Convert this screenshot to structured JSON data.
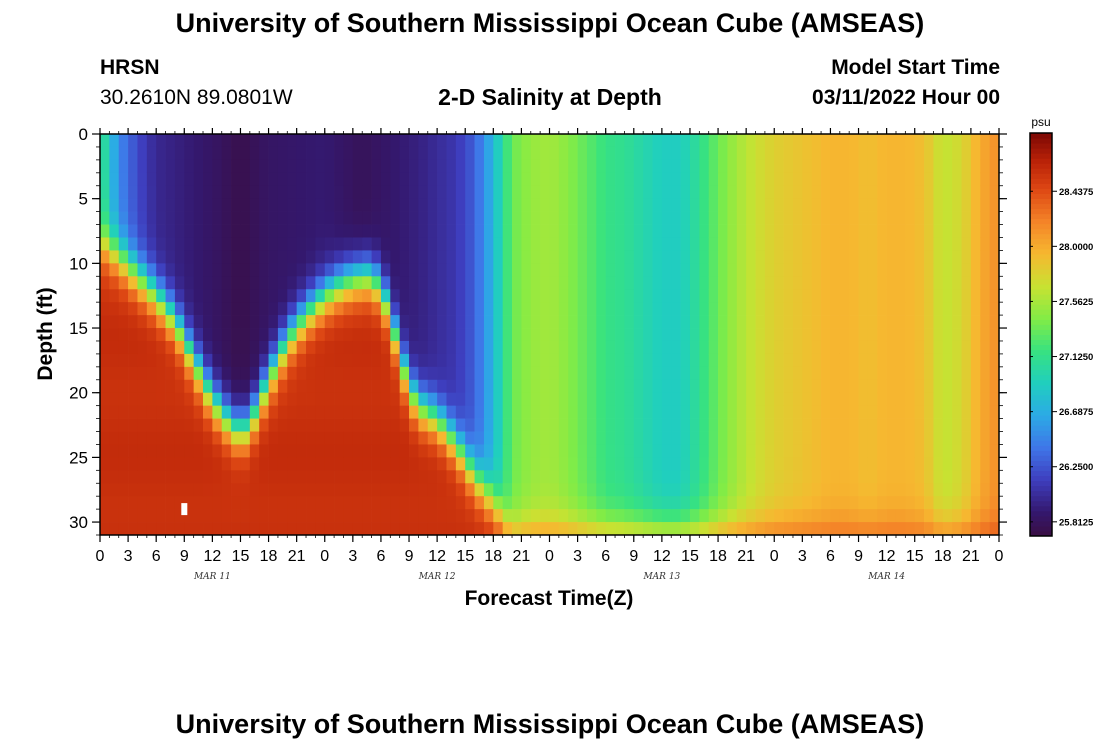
{
  "page": {
    "title": "University of Southern Mississippi Ocean Cube (AMSEAS)",
    "station": "HRSN",
    "coords": "30.2610N  89.0801W",
    "subtitle": "2-D Salinity at Depth",
    "model_start_label": "Model Start Time",
    "model_start_value": "03/11/2022 Hour 00"
  },
  "colorbar": {
    "unit": "psu",
    "ticks": [
      "28.4375",
      "28.0000",
      "27.5625",
      "27.1250",
      "26.6875",
      "26.2500",
      "25.8125"
    ],
    "tick_values": [
      28.4375,
      28.0,
      27.5625,
      27.125,
      26.6875,
      26.25,
      25.8125
    ],
    "range": [
      25.7,
      28.9
    ]
  },
  "chart_data": {
    "type": "heatmap",
    "title": "2-D Salinity at Depth",
    "xlabel": "Forecast Time(Z)",
    "ylabel": "Depth (ft)",
    "x_ticks": [
      "0",
      "3",
      "6",
      "9",
      "12",
      "15",
      "18",
      "21",
      "0",
      "3",
      "6",
      "9",
      "12",
      "15",
      "18",
      "21",
      "0",
      "3",
      "6",
      "9",
      "12",
      "15",
      "18",
      "21",
      "0",
      "3",
      "6",
      "9",
      "12",
      "15",
      "18",
      "21",
      "0"
    ],
    "x_range_hours": [
      0,
      96
    ],
    "date_labels": [
      {
        "label": "MAR 11",
        "hour": 12
      },
      {
        "label": "MAR 12",
        "hour": 36
      },
      {
        "label": "MAR 13",
        "hour": 60
      },
      {
        "label": "MAR 14",
        "hour": 84
      }
    ],
    "y_ticks": [
      "0",
      "5",
      "10",
      "15",
      "20",
      "25",
      "30"
    ],
    "y_tick_values": [
      0,
      5,
      10,
      15,
      20,
      25,
      30
    ],
    "ylim": [
      0,
      31
    ],
    "unit": "psu",
    "value_range": [
      25.7,
      28.9
    ],
    "interface_depth_ft": [
      [
        0,
        8.5
      ],
      [
        2,
        9.5
      ],
      [
        4,
        11
      ],
      [
        6,
        12.5
      ],
      [
        8,
        14.5
      ],
      [
        10,
        17.5
      ],
      [
        12,
        20.5
      ],
      [
        14,
        22.5
      ],
      [
        15,
        23
      ],
      [
        16,
        22.5
      ],
      [
        18,
        19
      ],
      [
        20,
        16
      ],
      [
        22,
        14
      ],
      [
        24,
        12.5
      ],
      [
        26,
        11.5
      ],
      [
        28,
        11
      ],
      [
        29,
        11
      ],
      [
        30,
        12
      ],
      [
        31,
        14
      ],
      [
        32,
        17
      ],
      [
        33,
        19.5
      ],
      [
        34,
        21
      ],
      [
        36,
        22
      ],
      [
        38,
        24
      ],
      [
        40,
        26.5
      ],
      [
        42,
        28.5
      ],
      [
        44,
        31
      ]
    ],
    "surface_profile_psu": [
      [
        0,
        27.2
      ],
      [
        2,
        26.5
      ],
      [
        4,
        26.2
      ],
      [
        6,
        26.0
      ],
      [
        8,
        25.95
      ],
      [
        12,
        25.85
      ],
      [
        15,
        25.75
      ],
      [
        18,
        25.85
      ],
      [
        24,
        25.9
      ],
      [
        28,
        25.8
      ],
      [
        30,
        25.85
      ],
      [
        34,
        25.95
      ],
      [
        38,
        26.1
      ],
      [
        40,
        26.3
      ],
      [
        42,
        26.75
      ],
      [
        44,
        27.35
      ],
      [
        46,
        27.5
      ],
      [
        48,
        27.55
      ],
      [
        50,
        27.45
      ],
      [
        52,
        27.3
      ],
      [
        54,
        27.15
      ],
      [
        56,
        27.1
      ],
      [
        58,
        27.0
      ],
      [
        60,
        26.9
      ],
      [
        62,
        26.9
      ],
      [
        64,
        27.1
      ],
      [
        66,
        27.35
      ],
      [
        68,
        27.55
      ],
      [
        70,
        27.7
      ],
      [
        72,
        27.8
      ],
      [
        74,
        27.85
      ],
      [
        76,
        27.9
      ],
      [
        78,
        27.95
      ],
      [
        80,
        27.95
      ],
      [
        82,
        27.9
      ],
      [
        84,
        27.95
      ],
      [
        86,
        27.95
      ],
      [
        88,
        27.9
      ],
      [
        90,
        27.65
      ],
      [
        92,
        27.75
      ],
      [
        94,
        28.0
      ],
      [
        96,
        28.15
      ]
    ],
    "bottom_layer_psu": 28.6,
    "marker": {
      "hour": 9,
      "depth_ft": 29
    }
  }
}
